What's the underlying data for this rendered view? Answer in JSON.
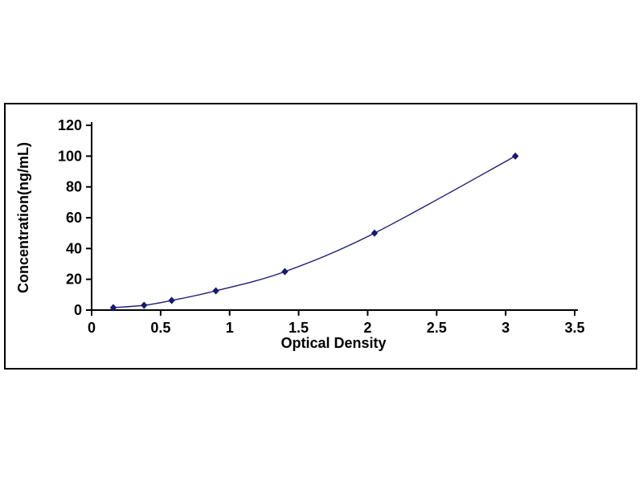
{
  "chart_data": {
    "type": "scatter",
    "title": "",
    "xlabel": "Optical Density",
    "ylabel": "Concentration(ng/mL)",
    "x": [
      0.157,
      0.38,
      0.58,
      0.9,
      1.4,
      2.05,
      3.07
    ],
    "y": [
      1.56,
      3.12,
      6.25,
      12.5,
      25,
      50,
      100
    ],
    "xlim": [
      0,
      3.5
    ],
    "ylim": [
      0,
      120
    ],
    "x_ticks": [
      0,
      0.5,
      1,
      1.5,
      2,
      2.5,
      3,
      3.5
    ],
    "x_tick_labels": [
      "0",
      "0.5",
      "1",
      "1.5",
      "2",
      "2.5",
      "3",
      "3.5"
    ],
    "y_ticks": [
      0,
      20,
      40,
      60,
      80,
      100,
      120
    ],
    "y_tick_labels": [
      "0",
      "20",
      "40",
      "60",
      "80",
      "100",
      "120"
    ],
    "grid": false,
    "legend": null,
    "marker": "diamond",
    "colors": {
      "line": "#1c1c75",
      "marker": "#191970",
      "axis": "#000000",
      "frame": "#000000",
      "background": "#ffffff"
    }
  }
}
